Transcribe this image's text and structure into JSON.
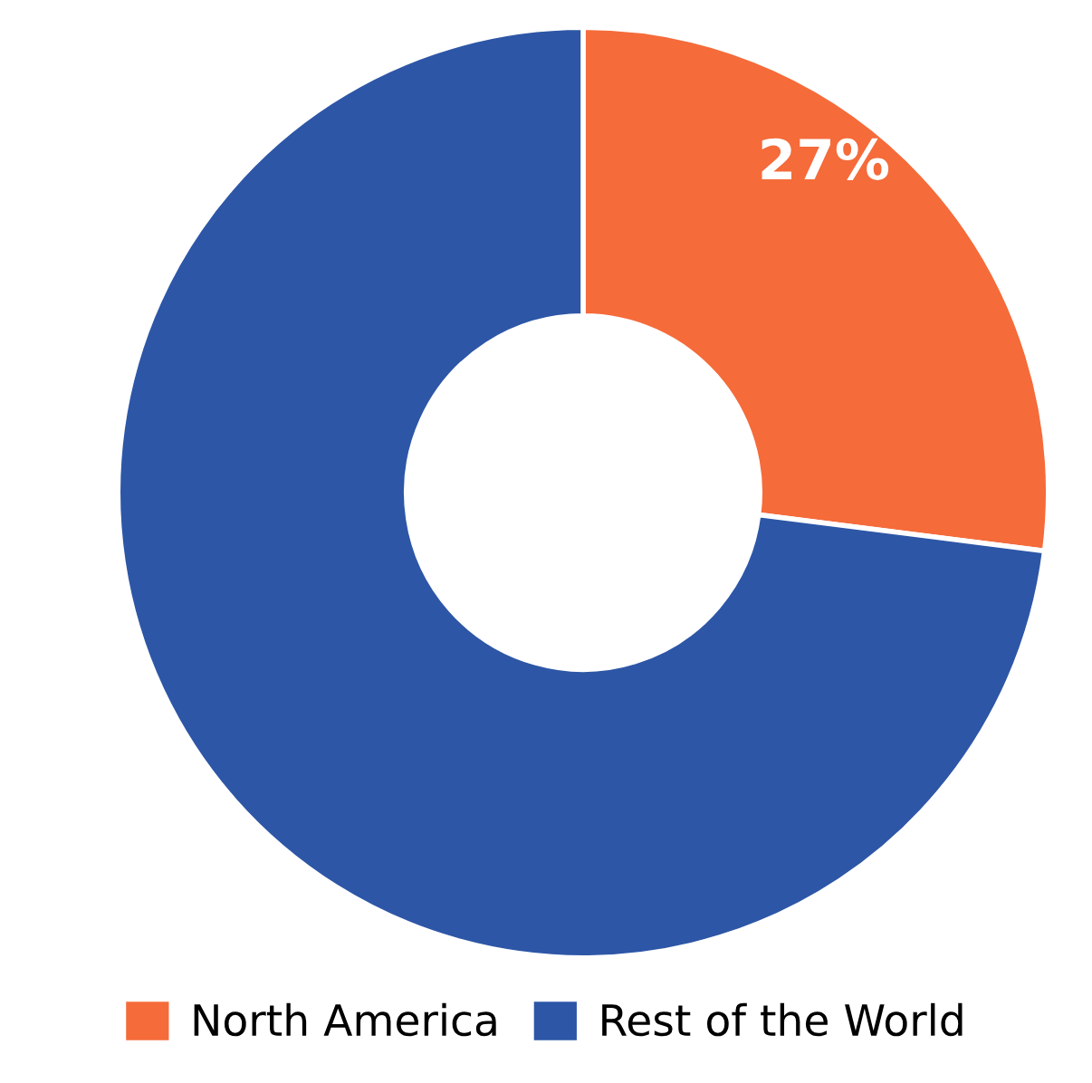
{
  "chart_data": {
    "type": "donut",
    "categories": [
      "North America",
      "Rest of the World"
    ],
    "values": [
      27,
      73
    ],
    "colors": [
      "#f56b3a",
      "#2d56a6"
    ],
    "value_labels": [
      "27%",
      null
    ],
    "legend": "bottom"
  }
}
